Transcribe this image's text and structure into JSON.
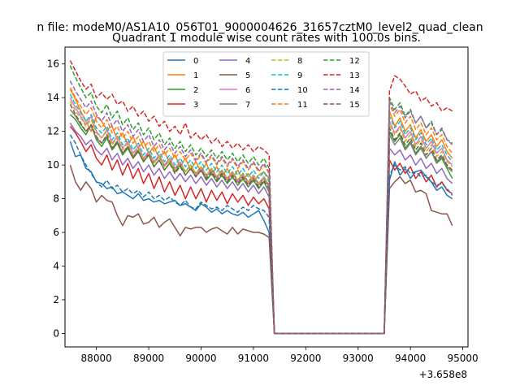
{
  "suptitle": "n file: modeM0/AS1A10_056T01_9000004626_31657cztM0_level2_quad_clean",
  "chart_data": {
    "type": "line",
    "title": "Quadrant 1 module wise count rates with 100.0s bins.",
    "xlabel": "",
    "ylabel": "",
    "x_offset_label": "+3.658e8",
    "xlim": [
      87400,
      95100
    ],
    "ylim": [
      -0.8,
      17.0
    ],
    "xticks": [
      88000,
      89000,
      90000,
      91000,
      92000,
      93000,
      94000,
      95000
    ],
    "xtick_labels": [
      "88000",
      "89000",
      "90000",
      "91000",
      "92000",
      "93000",
      "94000",
      "95000"
    ],
    "yticks": [
      0,
      2,
      4,
      6,
      8,
      10,
      12,
      14,
      16
    ],
    "ytick_labels": [
      "0",
      "2",
      "4",
      "6",
      "8",
      "10",
      "12",
      "14",
      "16"
    ],
    "legend_position": "upper center",
    "gap": {
      "start": 91400,
      "end": 93500,
      "value": 0
    },
    "x_first": [
      87500,
      87600,
      87700,
      87800,
      87900,
      88000,
      88100,
      88200,
      88300,
      88400,
      88500,
      88600,
      88700,
      88800,
      88900,
      89000,
      89100,
      89200,
      89300,
      89400,
      89500,
      89600,
      89700,
      89800,
      89900,
      90000,
      90100,
      90200,
      90300,
      90400,
      90500,
      90600,
      90700,
      90800,
      90900,
      91000,
      91100,
      91200,
      91300
    ],
    "x_second": [
      93600,
      93700,
      93800,
      93900,
      94000,
      94100,
      94200,
      94300,
      94400,
      94500,
      94600,
      94700,
      94800
    ],
    "series": [
      {
        "name": "0",
        "color": "#1f77b4",
        "dash": "solid",
        "seg1": [
          11.4,
          10.5,
          10.6,
          9.8,
          9.6,
          9.0,
          8.9,
          8.6,
          8.7,
          8.3,
          8.4,
          8.2,
          8.0,
          8.3,
          7.9,
          8.0,
          7.8,
          7.9,
          7.7,
          7.8,
          7.9,
          7.6,
          7.7,
          7.5,
          7.3,
          7.7,
          7.5,
          7.2,
          7.4,
          7.1,
          7.3,
          7.1,
          7.0,
          7.2,
          6.9,
          7.1,
          7.3,
          6.7,
          6.0
        ],
        "seg2": [
          9.1,
          10.2,
          9.4,
          9.8,
          9.2,
          9.6,
          9.7,
          9.3,
          9.0,
          8.5,
          8.7,
          8.2,
          8.0
        ]
      },
      {
        "name": "1",
        "color": "#ff7f0e",
        "dash": "solid",
        "seg1": [
          14.5,
          13.9,
          13.2,
          12.6,
          12.0,
          12.9,
          12.6,
          12.1,
          12.3,
          11.5,
          11.9,
          11.2,
          11.7,
          11.0,
          11.4,
          10.7,
          11.1,
          10.4,
          10.8,
          10.1,
          10.6,
          9.9,
          10.4,
          9.7,
          10.2,
          9.6,
          10.1,
          9.4,
          9.9,
          9.3,
          9.8,
          9.2,
          9.7,
          9.1,
          9.5,
          9.0,
          9.4,
          9.6,
          9.2
        ],
        "seg2": [
          13.2,
          12.3,
          12.8,
          12.0,
          12.4,
          11.6,
          12.1,
          11.4,
          11.8,
          11.1,
          11.5,
          10.8,
          10.4
        ]
      },
      {
        "name": "2",
        "color": "#2ca02c",
        "dash": "solid",
        "seg1": [
          13.0,
          12.7,
          12.2,
          11.8,
          12.4,
          11.5,
          11.1,
          11.6,
          10.9,
          11.3,
          10.6,
          11.0,
          10.4,
          10.8,
          10.2,
          10.6,
          9.9,
          10.3,
          9.7,
          10.1,
          9.6,
          10.0,
          9.4,
          9.8,
          9.3,
          9.7,
          9.1,
          9.5,
          9.0,
          9.4,
          8.9,
          9.3,
          8.8,
          9.2,
          8.7,
          9.1,
          8.6,
          9.0,
          8.4
        ],
        "seg2": [
          12.0,
          11.4,
          11.8,
          11.0,
          11.4,
          10.7,
          11.1,
          10.4,
          10.8,
          10.1,
          10.4,
          9.8,
          9.2
        ]
      },
      {
        "name": "3",
        "color": "#d62728",
        "dash": "solid",
        "seg1": [
          12.3,
          11.9,
          11.4,
          10.8,
          11.2,
          10.4,
          10.0,
          10.6,
          9.7,
          10.3,
          9.4,
          10.1,
          9.2,
          9.8,
          8.9,
          9.5,
          8.6,
          9.3,
          8.4,
          9.0,
          8.2,
          8.8,
          8.0,
          8.7,
          8.0,
          8.6,
          7.8,
          8.5,
          7.9,
          8.4,
          7.7,
          8.3,
          7.8,
          8.2,
          7.6,
          8.1,
          7.7,
          8.0,
          7.4
        ],
        "seg2": [
          10.3,
          9.7,
          10.1,
          9.5,
          9.9,
          9.2,
          9.6,
          9.0,
          9.4,
          8.7,
          9.0,
          8.5,
          8.3
        ]
      },
      {
        "name": "4",
        "color": "#9467bd",
        "dash": "solid",
        "seg1": [
          12.5,
          12.0,
          11.7,
          11.2,
          11.5,
          10.9,
          10.6,
          11.0,
          10.3,
          10.7,
          10.0,
          10.4,
          9.8,
          10.2,
          9.6,
          10.0,
          9.4,
          9.8,
          9.2,
          9.6,
          9.1,
          9.5,
          9.0,
          9.4,
          8.9,
          9.3,
          8.8,
          9.2,
          8.7,
          9.1,
          8.6,
          9.0,
          8.5,
          8.9,
          8.4,
          8.8,
          8.3,
          8.7,
          8.1
        ],
        "seg2": [
          11.0,
          10.6,
          10.9,
          10.3,
          10.6,
          10.0,
          10.4,
          9.8,
          10.1,
          9.5,
          9.8,
          9.2,
          8.9
        ]
      },
      {
        "name": "5",
        "color": "#8c564b",
        "dash": "solid",
        "seg1": [
          10.0,
          9.0,
          8.5,
          9.0,
          8.6,
          7.8,
          8.2,
          7.9,
          7.8,
          7.0,
          6.4,
          7.0,
          6.9,
          7.1,
          6.5,
          6.6,
          6.9,
          6.3,
          6.6,
          6.8,
          6.3,
          5.8,
          6.3,
          6.2,
          6.3,
          6.3,
          6.0,
          6.2,
          6.3,
          6.1,
          5.9,
          6.3,
          5.9,
          6.2,
          6.1,
          6.0,
          6.0,
          5.9,
          5.7
        ],
        "seg2": [
          8.6,
          9.0,
          9.3,
          8.9,
          9.1,
          8.4,
          8.5,
          8.3,
          7.3,
          7.2,
          7.1,
          7.1,
          6.4
        ]
      },
      {
        "name": "6",
        "color": "#e377c2",
        "dash": "solid",
        "seg1": [
          14.0,
          13.4,
          12.9,
          12.4,
          12.9,
          12.0,
          11.6,
          12.1,
          11.3,
          11.7,
          11.0,
          11.4,
          10.7,
          11.1,
          10.4,
          10.8,
          10.2,
          10.6,
          10.0,
          10.4,
          9.8,
          10.2,
          9.6,
          10.0,
          9.4,
          9.8,
          9.3,
          9.7,
          9.2,
          9.6,
          9.1,
          9.5,
          9.0,
          9.4,
          8.9,
          9.3,
          8.8,
          9.2,
          8.7
        ],
        "seg2": [
          12.6,
          11.9,
          12.3,
          11.6,
          12.0,
          11.2,
          11.7,
          11.0,
          11.4,
          10.7,
          11.0,
          10.3,
          10.0
        ]
      },
      {
        "name": "7",
        "color": "#7f7f7f",
        "dash": "solid",
        "seg1": [
          13.3,
          12.9,
          12.4,
          12.0,
          12.3,
          11.6,
          11.3,
          11.7,
          11.0,
          11.4,
          10.7,
          11.1,
          10.5,
          10.9,
          10.3,
          10.7,
          10.1,
          10.5,
          9.9,
          10.3,
          9.7,
          10.1,
          9.6,
          10.0,
          9.5,
          9.9,
          9.4,
          9.8,
          9.3,
          9.7,
          9.2,
          9.6,
          9.1,
          9.5,
          9.0,
          9.4,
          8.9,
          9.3,
          8.8
        ],
        "seg2": [
          11.8,
          11.2,
          11.6,
          10.9,
          11.3,
          10.6,
          11.0,
          10.4,
          10.8,
          10.2,
          10.5,
          9.9,
          9.6
        ]
      },
      {
        "name": "8",
        "color": "#bcbd22",
        "dash": "dashed",
        "seg1": [
          13.8,
          13.2,
          12.8,
          12.3,
          12.7,
          11.9,
          11.6,
          12.0,
          11.2,
          11.6,
          10.9,
          11.3,
          10.6,
          11.0,
          10.3,
          10.7,
          10.1,
          10.5,
          9.9,
          10.3,
          9.7,
          10.1,
          9.6,
          10.0,
          9.5,
          9.9,
          9.4,
          9.8,
          9.3,
          9.7,
          9.2,
          9.6,
          9.1,
          9.5,
          9.0,
          9.4,
          8.9,
          9.3,
          8.8
        ],
        "seg2": [
          12.4,
          11.8,
          12.2,
          11.4,
          11.8,
          11.1,
          11.5,
          10.8,
          11.2,
          10.5,
          10.8,
          10.2,
          9.9
        ]
      },
      {
        "name": "9",
        "color": "#17becf",
        "dash": "dashed",
        "seg1": [
          14.2,
          13.6,
          13.1,
          12.6,
          13.0,
          12.2,
          11.9,
          12.3,
          11.5,
          11.9,
          11.2,
          11.6,
          10.9,
          11.3,
          10.6,
          11.0,
          10.4,
          10.8,
          10.2,
          10.6,
          10.0,
          10.4,
          9.9,
          10.3,
          9.8,
          10.2,
          9.7,
          10.1,
          9.6,
          10.0,
          9.5,
          9.9,
          9.4,
          9.8,
          9.3,
          9.7,
          9.2,
          9.6,
          9.0
        ],
        "seg2": [
          12.9,
          12.2,
          12.6,
          11.8,
          12.2,
          11.5,
          11.9,
          11.2,
          11.6,
          10.9,
          11.2,
          10.6,
          10.2
        ]
      },
      {
        "name": "10",
        "color": "#1f77b4",
        "dash": "dashed",
        "seg1": [
          11.8,
          11.3,
          10.6,
          10.0,
          9.5,
          9.0,
          8.7,
          9.1,
          8.6,
          8.8,
          8.4,
          8.6,
          8.3,
          8.5,
          8.1,
          8.4,
          8.0,
          8.2,
          7.9,
          8.1,
          7.8,
          7.6,
          7.9,
          7.5,
          7.4,
          7.8,
          7.6,
          7.4,
          7.5,
          7.3,
          7.6,
          7.4,
          7.2,
          7.5,
          7.3,
          7.6,
          7.4,
          7.3,
          6.9
        ],
        "seg2": [
          9.4,
          10.0,
          9.7,
          9.9,
          9.5,
          9.6,
          9.3,
          9.4,
          9.0,
          8.8,
          8.9,
          8.6,
          8.2
        ]
      },
      {
        "name": "11",
        "color": "#ff7f0e",
        "dash": "dashed",
        "seg1": [
          14.6,
          14.0,
          13.5,
          13.0,
          13.4,
          12.6,
          12.2,
          12.7,
          11.9,
          12.3,
          11.6,
          12.0,
          11.3,
          11.7,
          11.0,
          11.4,
          10.8,
          11.2,
          10.6,
          11.0,
          10.4,
          10.8,
          10.3,
          10.7,
          10.2,
          10.6,
          10.1,
          10.5,
          10.0,
          10.4,
          9.9,
          10.3,
          9.8,
          10.2,
          9.7,
          10.1,
          9.6,
          10.0,
          9.5
        ],
        "seg2": [
          13.6,
          12.9,
          13.3,
          12.5,
          12.9,
          12.1,
          12.5,
          11.8,
          12.2,
          11.5,
          11.8,
          11.1,
          10.7
        ]
      },
      {
        "name": "12",
        "color": "#2ca02c",
        "dash": "dashed",
        "seg1": [
          15.9,
          15.2,
          14.6,
          14.0,
          14.3,
          13.5,
          13.1,
          13.6,
          12.8,
          13.2,
          12.4,
          12.8,
          12.1,
          12.5,
          11.8,
          12.2,
          11.5,
          11.9,
          11.2,
          11.6,
          11.0,
          11.4,
          10.8,
          11.2,
          10.6,
          11.0,
          10.5,
          10.9,
          10.4,
          10.8,
          10.3,
          10.7,
          10.2,
          10.6,
          10.1,
          10.5,
          10.0,
          10.4,
          9.8
        ],
        "seg2": [
          14.0,
          13.3,
          13.7,
          12.9,
          13.3,
          12.5,
          12.9,
          12.2,
          12.6,
          11.8,
          12.1,
          11.5,
          11.3
        ]
      },
      {
        "name": "13",
        "color": "#d62728",
        "dash": "dashed",
        "seg1": [
          16.2,
          15.6,
          15.0,
          14.5,
          14.8,
          14.0,
          14.3,
          13.9,
          14.2,
          13.6,
          13.8,
          13.2,
          13.5,
          12.9,
          13.2,
          12.6,
          12.9,
          12.3,
          12.6,
          12.0,
          12.3,
          11.8,
          12.5,
          11.6,
          11.9,
          11.5,
          11.8,
          11.3,
          11.6,
          11.1,
          11.4,
          11.0,
          11.3,
          10.9,
          11.2,
          10.8,
          11.1,
          10.9,
          10.6
        ],
        "seg2": [
          14.4,
          15.3,
          15.1,
          14.7,
          14.2,
          14.4,
          13.8,
          14.0,
          13.5,
          13.7,
          13.2,
          13.4,
          13.2
        ]
      },
      {
        "name": "14",
        "color": "#9467bd",
        "dash": "dashed",
        "seg1": [
          15.0,
          14.4,
          13.9,
          13.4,
          13.8,
          13.0,
          12.6,
          13.1,
          12.3,
          12.7,
          12.0,
          12.4,
          11.7,
          12.1,
          11.4,
          11.8,
          11.1,
          11.5,
          10.9,
          11.3,
          10.7,
          11.1,
          10.5,
          10.9,
          10.3,
          10.7,
          10.2,
          10.6,
          10.1,
          10.5,
          10.0,
          10.4,
          9.9,
          10.3,
          9.8,
          10.2,
          9.7,
          10.1,
          9.6
        ],
        "seg2": [
          13.8,
          13.1,
          13.5,
          12.8,
          13.2,
          12.5,
          12.9,
          12.2,
          12.5,
          11.8,
          12.2,
          11.5,
          11.2
        ]
      },
      {
        "name": "15",
        "color": "#8c564b",
        "dash": "dashed",
        "seg1": [
          13.6,
          13.0,
          12.5,
          12.0,
          12.4,
          11.7,
          11.3,
          11.8,
          11.0,
          11.4,
          10.7,
          11.1,
          10.4,
          10.8,
          10.2,
          10.6,
          9.9,
          10.3,
          9.7,
          10.1,
          9.5,
          9.9,
          9.4,
          9.8,
          9.3,
          9.7,
          9.2,
          9.6,
          9.1,
          9.5,
          9.0,
          9.4,
          8.9,
          9.3,
          8.8,
          9.2,
          8.7,
          9.1,
          8.6
        ],
        "seg2": [
          12.2,
          11.5,
          11.9,
          11.2,
          11.6,
          10.9,
          11.3,
          10.6,
          11.0,
          10.3,
          10.6,
          10.0,
          9.7
        ]
      }
    ]
  }
}
